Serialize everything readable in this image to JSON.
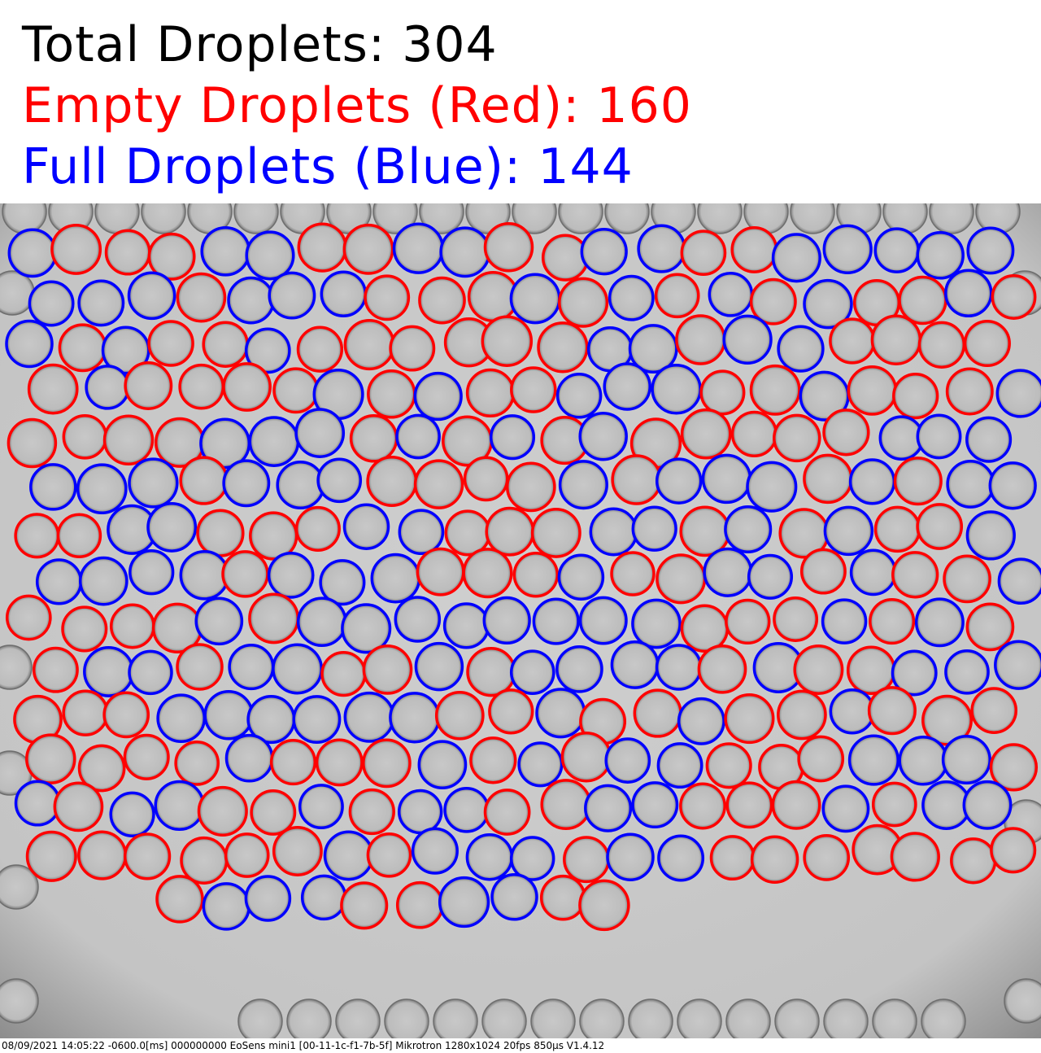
{
  "header": {
    "total": "Total Droplets: 304",
    "empty": "Empty Droplets (Red): 160",
    "full": "Full Droplets (Blue): 144"
  },
  "colors": {
    "empty": "#ff0000",
    "full": "#0000ff",
    "background": "#c9c9c9",
    "droplet_fill": "#bdbdbd"
  },
  "footer": {
    "caption": "08/09/2021 14:05:22 -0600.0[ms] 000000000 EoSens mini1 [00-11-1c-f1-7b-5f] Mikrotron 1280x1024 20fps 850µs V1.4.12"
  }
}
